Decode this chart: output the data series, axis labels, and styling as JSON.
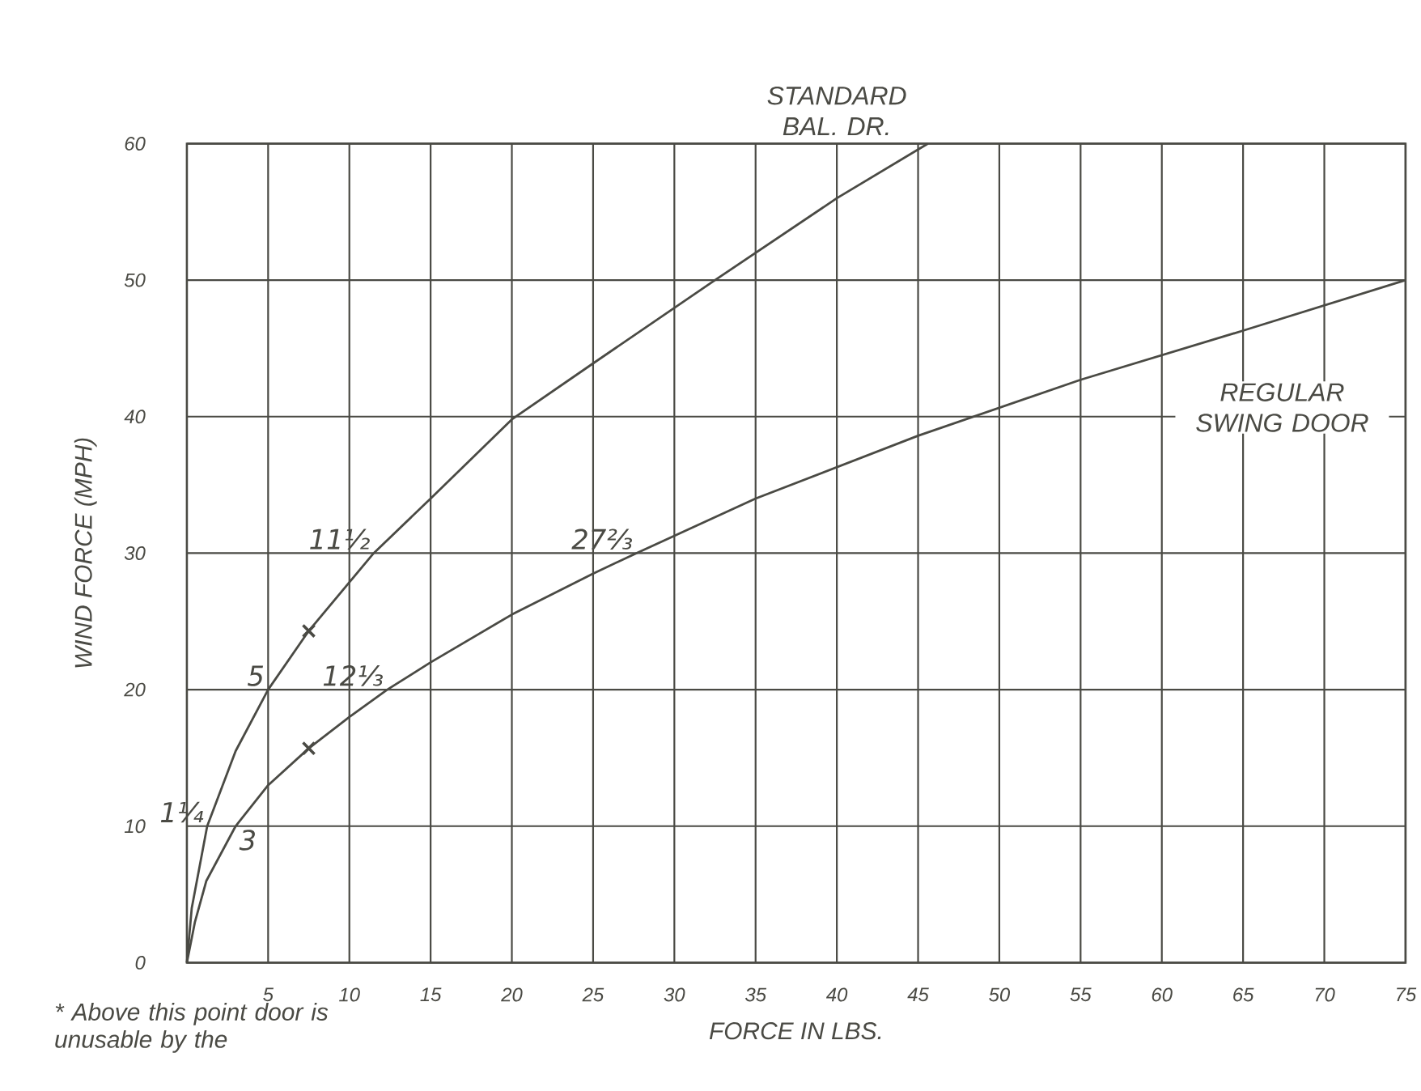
{
  "chart_data": {
    "type": "line",
    "xlabel": "FORCE IN LBS.",
    "ylabel": "WIND FORCE (MPH)",
    "xlim": [
      0,
      75
    ],
    "ylim": [
      0,
      60
    ],
    "xticks": [
      5,
      10,
      15,
      20,
      25,
      30,
      35,
      40,
      45,
      50,
      55,
      60,
      65,
      70,
      75
    ],
    "yticks": [
      0,
      10,
      20,
      30,
      40,
      50,
      60
    ],
    "grid": true,
    "legend": false,
    "marker": "none",
    "line_style": "solid",
    "series": [
      {
        "name": "STANDARD BAL. DR.",
        "color": "#4a4a44",
        "x": [
          0,
          0.3,
          1.25,
          3,
          5,
          7.5,
          11.5,
          15,
          20,
          25,
          32.5,
          40,
          45.6
        ],
        "values": [
          0,
          4,
          10,
          15.5,
          20,
          24.3,
          30,
          34,
          39.8,
          43.9,
          50,
          56,
          60
        ]
      },
      {
        "name": "REGULAR SWING DOOR",
        "color": "#4a4a44",
        "x": [
          0,
          0.5,
          1.2,
          3,
          5,
          7.5,
          10,
          12.33,
          15,
          20,
          25,
          27.67,
          35,
          45,
          55,
          65,
          75
        ],
        "values": [
          0,
          3,
          6,
          10,
          13,
          15.7,
          18,
          20,
          22,
          25.5,
          28.5,
          30,
          34,
          38.6,
          42.7,
          46.3,
          50
        ]
      },
      {
        "type": "scatter",
        "marker": "cross",
        "color": "#4a4a44",
        "x": [
          7.5,
          7.5
        ],
        "values": [
          24.3,
          15.7
        ]
      }
    ],
    "annotations": [
      {
        "text": "1¼",
        "x": 1.25,
        "y": 10
      },
      {
        "text": "5",
        "x": 5,
        "y": 20
      },
      {
        "text": "11½",
        "x": 11.5,
        "y": 30
      },
      {
        "text": "3",
        "x": 3,
        "y": 10
      },
      {
        "text": "12⅓",
        "x": 12.33,
        "y": 20
      },
      {
        "text": "27⅔",
        "x": 27.67,
        "y": 30
      },
      "* Above this point door is unusable by the"
    ]
  }
}
